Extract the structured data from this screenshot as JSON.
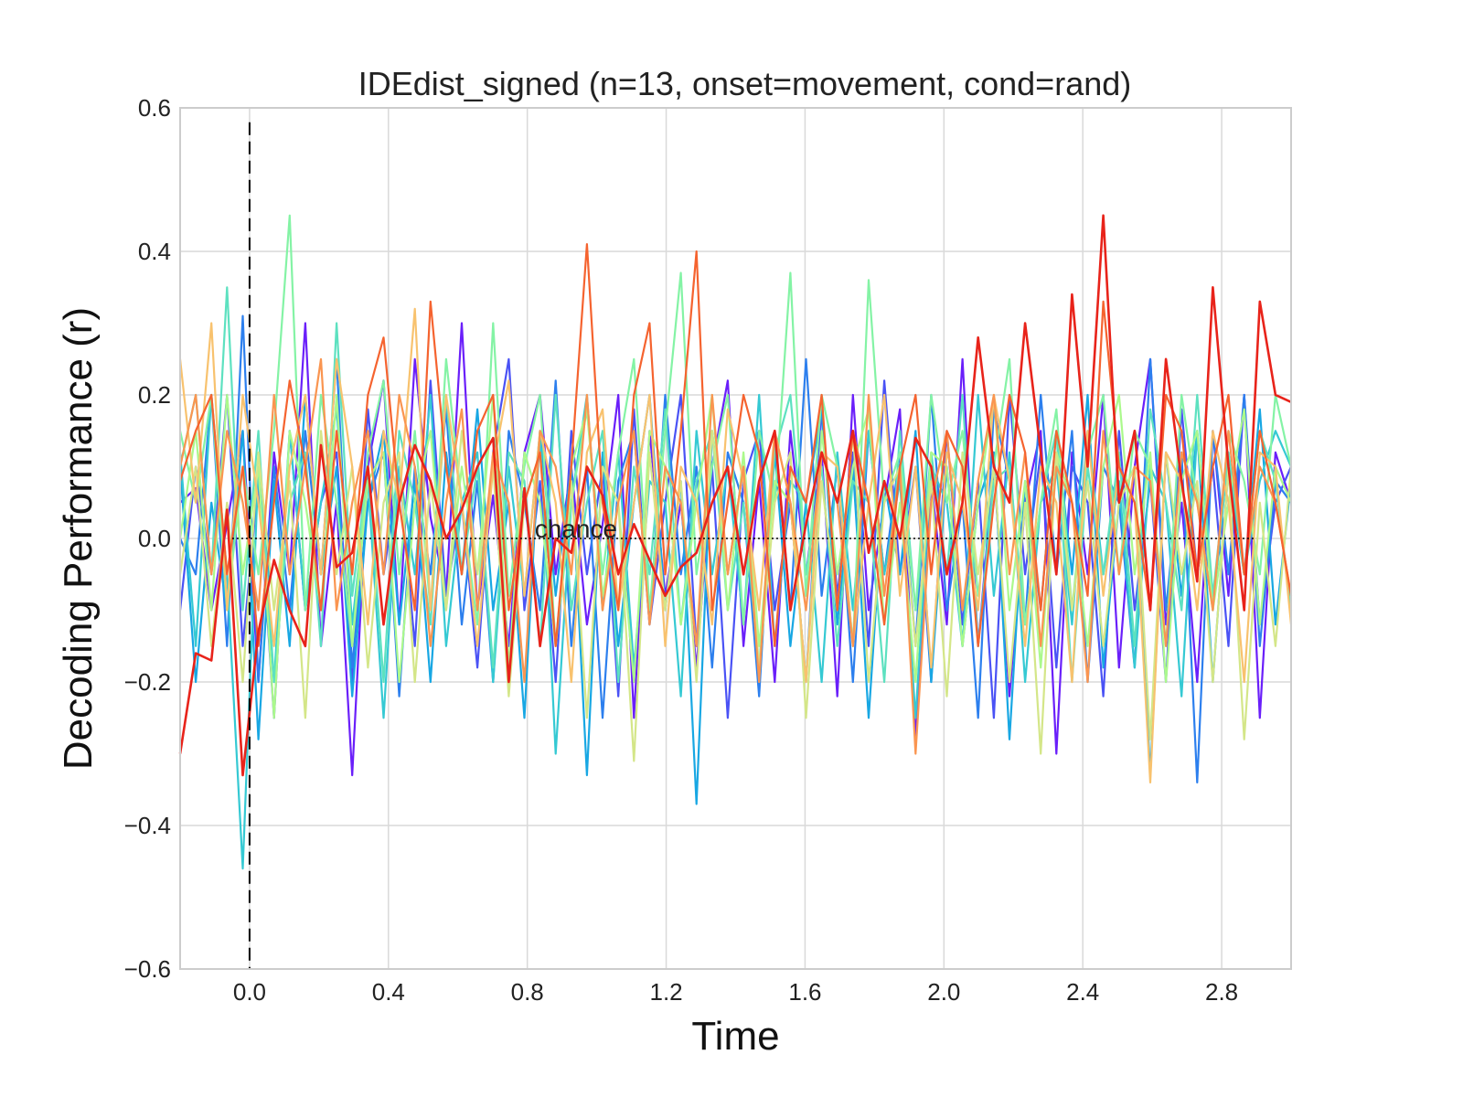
{
  "chart_data": {
    "type": "line",
    "title": "IDEdist_signed (n=13, onset=movement, cond=rand)",
    "xlabel": "Time",
    "ylabel": "Decoding Performance (r)",
    "xlim": [
      -0.2,
      3.0
    ],
    "ylim": [
      -0.6,
      0.6
    ],
    "xticks": [
      "0.0",
      "0.4",
      "0.8",
      "1.2",
      "1.6",
      "2.0",
      "2.4",
      "2.8"
    ],
    "xtick_values": [
      0.0,
      0.4,
      0.8,
      1.2,
      1.6,
      2.0,
      2.4,
      2.8
    ],
    "yticks": [
      "−0.6",
      "−0.4",
      "−0.2",
      "0.0",
      "0.2",
      "0.4",
      "0.6"
    ],
    "ytick_values": [
      -0.6,
      -0.4,
      -0.2,
      0.0,
      0.2,
      0.4,
      0.6
    ],
    "grid": true,
    "legend": "none",
    "onset_line": {
      "x": 0.0,
      "style": "dashed",
      "color": "#000000"
    },
    "chance_line": {
      "y": 0.0,
      "label": "chance",
      "x_start": -0.05,
      "x_end": 2.9,
      "style": "dotted"
    },
    "series_colors": [
      "#6a1ffa",
      "#4a52f5",
      "#2c7fee",
      "#18a7e3",
      "#35c9d3",
      "#5de1c0",
      "#84f3a5",
      "#abf98c",
      "#d4e688",
      "#f8c26e",
      "#fa9550",
      "#f5632f",
      "#e8231a"
    ],
    "series": [
      {
        "values": [
          0.05,
          0.07,
          -0.1,
          0.02,
          0.15,
          -0.2,
          0.12,
          -0.05,
          0.3,
          -0.15,
          0.05,
          -0.33,
          0.1,
          0.22,
          -0.12,
          0.25,
          0.03,
          -0.08,
          0.3,
          -0.1,
          0.06,
          -0.15,
          0.12,
          0.2,
          -0.05,
          0.1,
          -0.12,
          0.02,
          0.2,
          -0.25,
          0.15,
          -0.08,
          0.05,
          -0.18,
          0.1,
          0.22,
          -0.15,
          0.08,
          -0.2,
          0.15,
          -0.05,
          0.12,
          -0.22,
          0.2,
          -0.1,
          0.05,
          0.18,
          -0.28,
          0.08,
          -0.12,
          0.25,
          -0.15,
          0.1,
          -0.22,
          0.05,
          0.15,
          -0.3,
          0.12,
          -0.05,
          0.2,
          -0.18,
          0.1,
          0.25,
          -0.12,
          0.05,
          -0.2,
          0.15,
          -0.08,
          0.2,
          -0.25,
          0.12,
          0.05
        ]
      },
      {
        "values": [
          -0.1,
          0.1,
          -0.05,
          0.2,
          -0.15,
          0.08,
          -0.25,
          0.15,
          -0.1,
          0.05,
          0.12,
          -0.2,
          0.18,
          -0.05,
          0.1,
          -0.15,
          0.22,
          -0.08,
          0.05,
          -0.18,
          0.12,
          0.25,
          -0.1,
          0.08,
          -0.2,
          0.15,
          -0.05,
          0.1,
          -0.22,
          0.18,
          -0.12,
          0.05,
          0.2,
          -0.15,
          0.1,
          -0.25,
          0.08,
          0.15,
          -0.1,
          0.05,
          -0.2,
          0.18,
          -0.08,
          0.12,
          -0.15,
          0.22,
          -0.05,
          0.1,
          -0.2,
          0.15,
          -0.12,
          0.08,
          -0.25,
          0.2,
          -0.05,
          0.12,
          -0.18,
          0.1,
          0.05,
          -0.22,
          0.15,
          -0.1,
          0.08,
          -0.2,
          0.18,
          -0.05,
          0.1,
          -0.15,
          0.2,
          -0.12,
          0.05,
          0.1
        ]
      },
      {
        "values": [
          0.0,
          -0.05,
          0.2,
          -0.15,
          0.31,
          -0.2,
          0.1,
          -0.1,
          0.15,
          -0.05,
          0.25,
          -0.18,
          0.05,
          0.12,
          -0.22,
          0.1,
          -0.05,
          0.18,
          -0.12,
          0.08,
          -0.2,
          0.15,
          0.05,
          -0.1,
          0.22,
          -0.15,
          0.1,
          -0.25,
          0.08,
          0.15,
          -0.12,
          0.2,
          -0.05,
          0.1,
          -0.18,
          0.12,
          0.05,
          -0.22,
          0.15,
          -0.1,
          0.25,
          -0.08,
          0.1,
          -0.2,
          0.15,
          -0.05,
          0.12,
          -0.15,
          0.2,
          -0.1,
          0.05,
          -0.25,
          0.18,
          0.08,
          -0.12,
          0.2,
          -0.05,
          0.15,
          -0.2,
          0.1,
          0.05,
          -0.18,
          0.25,
          -0.1,
          0.12,
          -0.34,
          0.15,
          -0.05,
          0.2,
          -0.15,
          0.08,
          0.05
        ]
      },
      {
        "values": [
          0.1,
          -0.2,
          0.05,
          -0.1,
          0.15,
          -0.28,
          0.08,
          -0.15,
          0.2,
          -0.05,
          0.1,
          -0.22,
          0.05,
          0.15,
          -0.12,
          0.08,
          -0.2,
          0.12,
          -0.05,
          0.18,
          -0.1,
          0.05,
          -0.25,
          0.15,
          -0.08,
          0.1,
          -0.33,
          0.12,
          -0.15,
          0.05,
          0.2,
          -0.1,
          0.08,
          -0.37,
          0.15,
          -0.05,
          0.1,
          -0.2,
          0.12,
          -0.15,
          0.05,
          0.18,
          -0.12,
          0.1,
          -0.25,
          0.08,
          -0.05,
          0.15,
          -0.2,
          0.1,
          -0.15,
          0.05,
          0.12,
          -0.28,
          0.08,
          -0.1,
          0.15,
          -0.05,
          0.2,
          -0.18,
          0.05,
          0.1,
          -0.33,
          0.12,
          -0.08,
          0.15,
          -0.2,
          0.1,
          -0.05,
          0.18,
          -0.12,
          0.08
        ]
      },
      {
        "values": [
          0.12,
          -0.15,
          0.2,
          -0.05,
          -0.46,
          0.1,
          -0.2,
          0.15,
          -0.1,
          0.05,
          0.18,
          -0.12,
          0.08,
          -0.25,
          0.1,
          -0.05,
          0.2,
          -0.15,
          0.05,
          0.12,
          -0.2,
          0.1,
          -0.08,
          0.15,
          -0.3,
          0.05,
          0.2,
          -0.1,
          0.12,
          -0.18,
          0.08,
          0.05,
          -0.22,
          0.15,
          -0.05,
          0.1,
          -0.12,
          0.2,
          -0.15,
          0.08,
          0.05,
          -0.2,
          0.12,
          -0.1,
          0.15,
          -0.05,
          0.08,
          -0.25,
          0.1,
          0.05,
          -0.15,
          0.2,
          -0.08,
          0.12,
          -0.2,
          0.05,
          0.1,
          -0.12,
          0.15,
          -0.05,
          0.08,
          -0.18,
          0.1,
          0.05,
          -0.22,
          0.15,
          -0.1,
          0.12,
          -0.05,
          0.08,
          0.15,
          0.1
        ]
      },
      {
        "values": [
          0.1,
          0.2,
          -0.05,
          0.35,
          -0.1,
          0.15,
          -0.2,
          0.05,
          0.12,
          -0.15,
          0.3,
          -0.08,
          0.1,
          -0.2,
          0.15,
          0.05,
          -0.12,
          0.2,
          -0.05,
          0.1,
          -0.18,
          0.12,
          0.08,
          -0.15,
          0.2,
          -0.1,
          0.05,
          0.15,
          -0.2,
          0.1,
          -0.05,
          0.18,
          -0.12,
          0.08,
          0.15,
          -0.1,
          0.05,
          -0.18,
          0.12,
          0.2,
          -0.05,
          0.1,
          -0.15,
          0.08,
          0.05,
          -0.2,
          0.15,
          -0.1,
          0.12,
          -0.05,
          0.2,
          -0.15,
          0.08,
          0.1,
          -0.12,
          0.05,
          0.15,
          -0.2,
          0.1,
          -0.05,
          0.12,
          -0.15,
          0.18,
          0.05,
          -0.1,
          0.2,
          -0.08,
          0.12,
          -0.05,
          0.15,
          0.08,
          -0.1
        ]
      },
      {
        "values": [
          0.15,
          0.05,
          0.2,
          -0.1,
          0.1,
          -0.05,
          0.15,
          0.45,
          -0.1,
          0.2,
          0.05,
          -0.15,
          0.12,
          0.22,
          -0.05,
          0.15,
          -0.1,
          0.25,
          0.05,
          -0.12,
          0.3,
          -0.08,
          0.1,
          0.2,
          -0.15,
          0.05,
          0.18,
          -0.05,
          0.12,
          0.25,
          -0.1,
          0.15,
          0.37,
          -0.05,
          0.1,
          0.2,
          -0.12,
          0.15,
          0.05,
          0.37,
          -0.08,
          0.2,
          0.1,
          -0.15,
          0.36,
          0.05,
          0.12,
          -0.1,
          0.2,
          0.05,
          0.15,
          -0.08,
          0.1,
          0.25,
          -0.12,
          0.05,
          0.18,
          -0.1,
          0.12,
          0.2,
          -0.05,
          0.15,
          0.1,
          -0.15,
          0.2,
          0.05,
          -0.1,
          0.15,
          0.08,
          -0.05,
          0.2,
          0.1
        ]
      },
      {
        "values": [
          0.0,
          0.15,
          -0.1,
          0.2,
          -0.05,
          0.1,
          -0.25,
          0.15,
          0.05,
          -0.1,
          0.2,
          -0.15,
          0.08,
          0.12,
          -0.2,
          0.05,
          0.15,
          -0.1,
          0.1,
          -0.05,
          0.2,
          -0.18,
          0.12,
          0.05,
          -0.15,
          0.1,
          0.18,
          -0.08,
          0.05,
          -0.2,
          0.15,
          0.1,
          -0.12,
          0.05,
          0.2,
          -0.1,
          0.12,
          -0.15,
          0.08,
          0.05,
          -0.2,
          0.15,
          -0.05,
          0.1,
          0.18,
          -0.12,
          0.05,
          -0.2,
          0.12,
          0.1,
          -0.15,
          0.05,
          0.2,
          -0.1,
          0.08,
          -0.18,
          0.12,
          0.05,
          -0.15,
          0.1,
          0.2,
          -0.05,
          0.12,
          -0.2,
          0.08,
          0.15,
          -0.1,
          0.05,
          0.18,
          -0.12,
          0.1,
          0.05
        ]
      },
      {
        "values": [
          -0.05,
          0.1,
          -0.15,
          0.05,
          -0.2,
          0.12,
          -0.1,
          0.08,
          -0.25,
          0.15,
          -0.05,
          0.1,
          -0.18,
          0.05,
          0.12,
          -0.2,
          0.08,
          -0.1,
          0.15,
          -0.05,
          0.1,
          -0.22,
          0.05,
          0.12,
          -0.15,
          0.08,
          -0.25,
          0.1,
          0.05,
          -0.31,
          0.12,
          -0.1,
          0.08,
          -0.2,
          0.15,
          -0.05,
          0.1,
          -0.18,
          0.05,
          0.12,
          -0.25,
          0.08,
          -0.1,
          0.15,
          -0.2,
          0.05,
          0.1,
          -0.15,
          0.08,
          -0.22,
          0.12,
          -0.05,
          0.1,
          -0.2,
          0.05,
          -0.3,
          0.12,
          -0.1,
          0.08,
          -0.15,
          0.05,
          0.1,
          -0.28,
          0.12,
          -0.05,
          0.08,
          -0.2,
          0.1,
          -0.28,
          0.05,
          -0.15,
          0.1
        ]
      },
      {
        "values": [
          0.25,
          0.05,
          0.3,
          -0.1,
          0.2,
          0.05,
          -0.15,
          0.1,
          0.2,
          -0.05,
          0.25,
          0.1,
          -0.12,
          0.15,
          0.05,
          0.32,
          -0.1,
          0.2,
          0.05,
          -0.15,
          0.1,
          0.22,
          -0.08,
          0.15,
          0.05,
          -0.2,
          0.12,
          0.18,
          -0.1,
          0.05,
          0.2,
          -0.15,
          0.1,
          0.05,
          -0.12,
          0.18,
          0.08,
          -0.1,
          0.15,
          0.05,
          -0.2,
          0.12,
          0.1,
          -0.15,
          0.05,
          0.2,
          -0.08,
          0.1,
          -0.18,
          0.12,
          0.05,
          -0.1,
          0.2,
          0.08,
          -0.15,
          0.1,
          0.05,
          -0.2,
          0.15,
          -0.08,
          0.1,
          0.05,
          -0.34,
          0.12,
          0.08,
          -0.1,
          0.15,
          0.05,
          -0.2,
          0.12,
          0.1,
          -0.12
        ]
      },
      {
        "values": [
          0.1,
          0.2,
          -0.05,
          0.15,
          0.05,
          -0.1,
          0.2,
          -0.05,
          0.1,
          0.25,
          -0.1,
          0.05,
          0.15,
          -0.05,
          0.2,
          0.1,
          -0.15,
          0.05,
          0.18,
          -0.1,
          0.12,
          0.05,
          -0.2,
          0.15,
          0.1,
          -0.05,
          0.2,
          -0.1,
          0.05,
          0.15,
          -0.12,
          0.1,
          0.05,
          -0.15,
          0.2,
          -0.05,
          0.1,
          -0.2,
          0.15,
          0.05,
          -0.1,
          0.12,
          0.05,
          -0.15,
          0.2,
          -0.08,
          0.1,
          -0.3,
          0.05,
          0.15,
          -0.1,
          0.08,
          0.2,
          -0.05,
          0.12,
          -0.15,
          0.1,
          0.05,
          -0.2,
          0.15,
          -0.05,
          0.1,
          0.08,
          -0.15,
          0.12,
          0.05,
          -0.1,
          0.15,
          -0.05,
          0.1,
          0.05,
          -0.08
        ]
      },
      {
        "values": [
          0.08,
          0.15,
          0.2,
          -0.05,
          0.1,
          -0.15,
          0.05,
          0.22,
          0.1,
          -0.1,
          0.15,
          -0.05,
          0.2,
          0.28,
          0.05,
          -0.1,
          0.33,
          0.1,
          -0.05,
          0.15,
          0.2,
          -0.1,
          0.05,
          0.12,
          -0.15,
          0.1,
          0.41,
          0.05,
          -0.1,
          0.2,
          0.3,
          -0.05,
          0.15,
          0.4,
          -0.1,
          0.05,
          0.2,
          0.12,
          -0.15,
          0.1,
          0.05,
          0.2,
          -0.1,
          0.15,
          0.05,
          -0.12,
          0.1,
          0.2,
          -0.05,
          0.15,
          0.1,
          -0.15,
          0.05,
          0.2,
          0.12,
          -0.1,
          0.15,
          0.05,
          -0.08,
          0.33,
          0.1,
          0.05,
          -0.1,
          0.2,
          0.15,
          -0.05,
          0.1,
          0.2,
          -0.05,
          0.15,
          0.05,
          -0.08
        ]
      },
      {
        "values": [
          -0.3,
          -0.16,
          -0.17,
          0.04,
          -0.33,
          -0.13,
          -0.03,
          -0.1,
          -0.15,
          0.13,
          -0.04,
          -0.02,
          0.1,
          -0.12,
          0.05,
          0.13,
          0.08,
          0.0,
          0.04,
          0.1,
          0.14,
          -0.2,
          0.07,
          -0.15,
          0.0,
          -0.02,
          0.1,
          0.06,
          -0.05,
          0.02,
          -0.03,
          -0.08,
          -0.04,
          -0.02,
          0.05,
          0.1,
          -0.05,
          0.08,
          0.15,
          -0.1,
          0.02,
          0.12,
          0.05,
          0.15,
          -0.02,
          0.08,
          0.0,
          0.14,
          0.1,
          -0.05,
          0.05,
          0.28,
          0.1,
          0.05,
          0.3,
          0.12,
          -0.05,
          0.34,
          0.1,
          0.45,
          0.05,
          0.15,
          -0.1,
          0.25,
          0.08,
          -0.06,
          0.35,
          0.1,
          -0.1,
          0.33,
          0.2,
          0.19
        ]
      }
    ]
  }
}
